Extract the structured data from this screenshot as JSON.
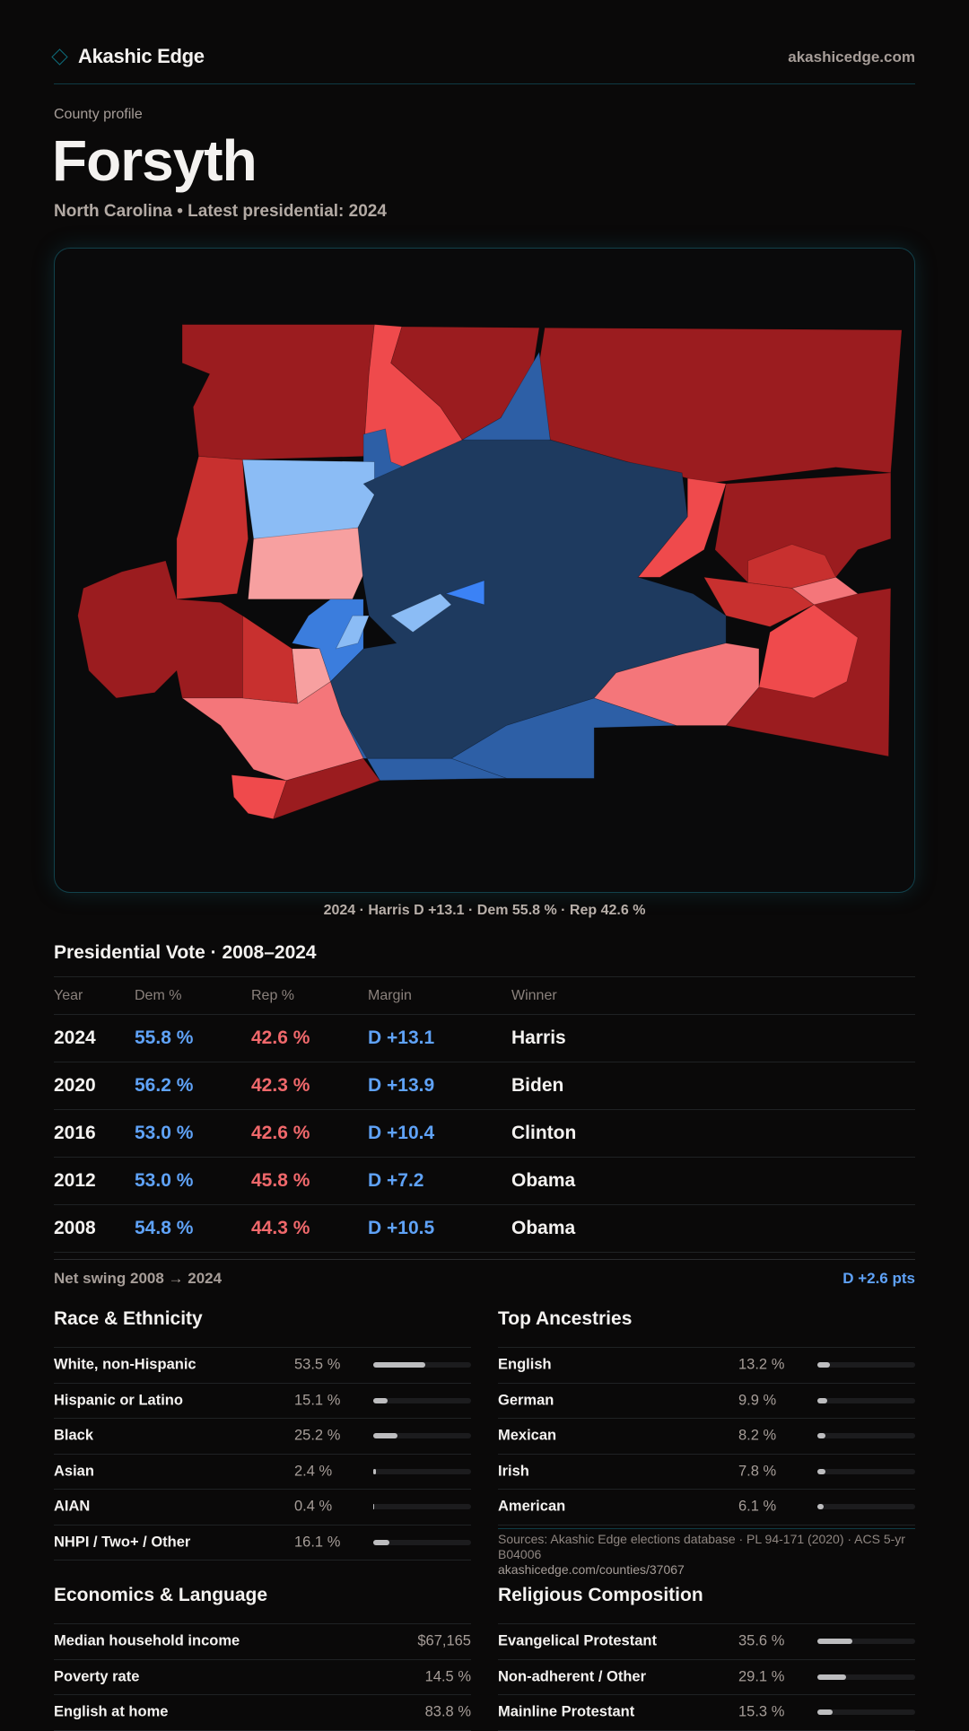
{
  "header": {
    "brand": "Akashic Edge",
    "site": "akashicedge.com"
  },
  "page": {
    "eyebrow": "County profile",
    "title": "Forsyth",
    "subtitle": "North Carolina • Latest presidential: 2024"
  },
  "map": {
    "caption": "2024 · Harris D +13.1 · Dem 55.8 % · Rep 42.6 %",
    "palette": {
      "dem_strong": "#1e3a5f",
      "dem": "#2d5fa6",
      "dem_mid": "#3b7ddd",
      "dem_light": "#8bbcf5",
      "dem_bright": "#3b82f6",
      "rep_strong": "#9b1c1f",
      "rep": "#c8302f",
      "rep_mid": "#ef4a4c",
      "rep_light": "#f4767a",
      "rep_pale": "#f7a0a0"
    }
  },
  "presidential": {
    "title": "Presidential Vote · 2008–2024",
    "columns": [
      "Year",
      "Dem %",
      "Rep %",
      "Margin",
      "Winner"
    ],
    "rows": [
      {
        "year": "2024",
        "dem": "55.8 %",
        "rep": "42.6 %",
        "margin": "D +13.1",
        "winner": "Harris"
      },
      {
        "year": "2020",
        "dem": "56.2 %",
        "rep": "42.3 %",
        "margin": "D +13.9",
        "winner": "Biden"
      },
      {
        "year": "2016",
        "dem": "53.0 %",
        "rep": "42.6 %",
        "margin": "D +10.4",
        "winner": "Clinton"
      },
      {
        "year": "2012",
        "dem": "53.0 %",
        "rep": "45.8 %",
        "margin": "D +7.2",
        "winner": "Obama"
      },
      {
        "year": "2008",
        "dem": "54.8 %",
        "rep": "44.3 %",
        "margin": "D +10.5",
        "winner": "Obama"
      }
    ],
    "swing_label": "Net swing 2008 → 2024",
    "swing_value": "D +2.6 pts"
  },
  "race": {
    "title": "Race & Ethnicity",
    "items": [
      {
        "label": "White, non-Hispanic",
        "value": "53.5 %",
        "pct": 53.5
      },
      {
        "label": "Hispanic or Latino",
        "value": "15.1 %",
        "pct": 15.1
      },
      {
        "label": "Black",
        "value": "25.2 %",
        "pct": 25.2
      },
      {
        "label": "Asian",
        "value": "2.4 %",
        "pct": 2.4
      },
      {
        "label": "AIAN",
        "value": "0.4 %",
        "pct": 0.4
      },
      {
        "label": "NHPI / Two+ / Other",
        "value": "16.1 %",
        "pct": 16.1
      }
    ]
  },
  "ancestry": {
    "title": "Top Ancestries",
    "items": [
      {
        "label": "English",
        "value": "13.2 %",
        "pct": 13.2
      },
      {
        "label": "German",
        "value": "9.9 %",
        "pct": 9.9
      },
      {
        "label": "Mexican",
        "value": "8.2 %",
        "pct": 8.2
      },
      {
        "label": "Irish",
        "value": "7.8 %",
        "pct": 7.8
      },
      {
        "label": "American",
        "value": "6.1 %",
        "pct": 6.1
      }
    ]
  },
  "economics": {
    "title": "Economics & Language",
    "items": [
      {
        "label": "Median household income",
        "value": "$67,165"
      },
      {
        "label": "Poverty rate",
        "value": "14.5 %"
      },
      {
        "label": "English at home",
        "value": "83.8 %"
      }
    ]
  },
  "religion": {
    "title": "Religious Composition",
    "items": [
      {
        "label": "Evangelical Protestant",
        "value": "35.6 %",
        "pct": 35.6
      },
      {
        "label": "Non-adherent / Other",
        "value": "29.1 %",
        "pct": 29.1
      },
      {
        "label": "Mainline Protestant",
        "value": "15.3 %",
        "pct": 15.3
      }
    ]
  },
  "footer": {
    "sources": "Sources: Akashic Edge elections database · PL 94-171 (2020) · ACS 5-yr B04006",
    "url": "akashicedge.com/counties/37067"
  }
}
